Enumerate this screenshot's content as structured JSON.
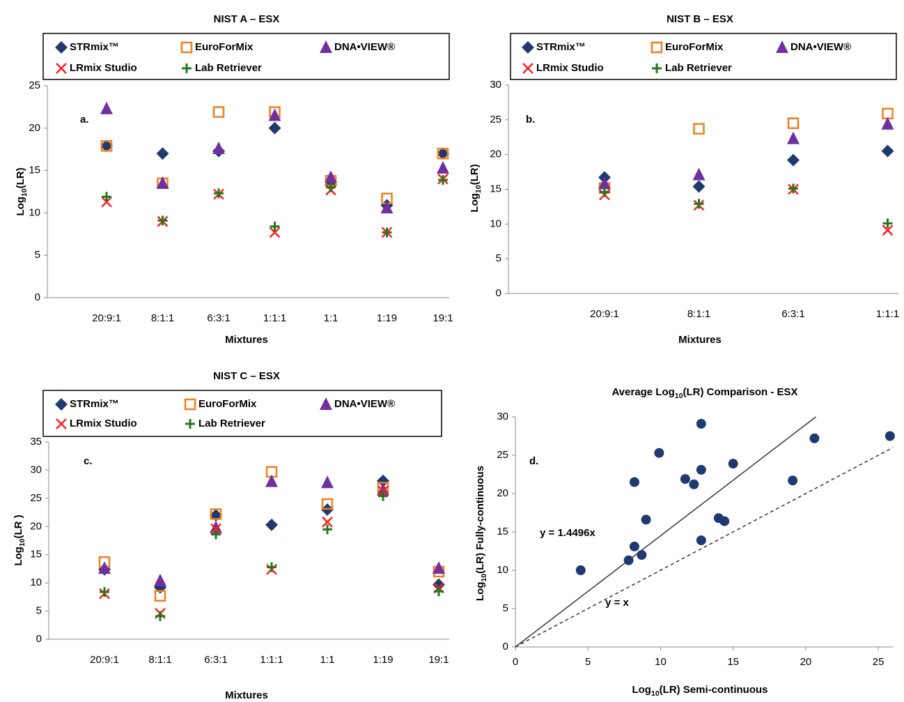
{
  "chart_data": [
    {
      "type": "scatter",
      "title": "NIST A – ESX",
      "annotation": "a.",
      "y_label": [
        "Log",
        "10",
        "(LR)"
      ],
      "x_label": "Mixtures",
      "categories": [
        "20:9:1",
        "8:1:1",
        "6:3:1",
        "1:1:1",
        "1:1",
        "1:19",
        "19:1"
      ],
      "ylim": [
        0,
        25
      ],
      "yticks": [
        0,
        5,
        10,
        15,
        20,
        25
      ],
      "series": [
        {
          "name": "STRmix™",
          "marker": "diamond",
          "color": "#1f3a6e",
          "values": [
            17.9,
            17.0,
            17.3,
            20.0,
            13.3,
            10.9,
            17.0
          ]
        },
        {
          "name": "EuroForMix",
          "marker": "square-open",
          "color": "#f07f1e",
          "values": [
            17.9,
            13.5,
            21.9,
            21.9,
            13.8,
            11.7,
            17.0
          ]
        },
        {
          "name": "DNA•VIEW®",
          "marker": "triangle",
          "color": "#7030a0",
          "values": [
            22.3,
            13.5,
            17.6,
            21.5,
            14.2,
            10.6,
            15.3
          ]
        },
        {
          "name": "LRmix Studio",
          "marker": "x",
          "color": "#ff2020",
          "values": [
            11.3,
            9.0,
            12.2,
            7.7,
            12.7,
            7.7,
            14.0
          ]
        },
        {
          "name": "Lab Retriever",
          "marker": "plus",
          "color": "#1e7a1e",
          "values": [
            11.9,
            9.1,
            12.3,
            8.4,
            13.0,
            7.7,
            13.9
          ]
        }
      ]
    },
    {
      "type": "scatter",
      "title": "NIST B – ESX",
      "annotation": "b.",
      "y_label": [
        "Log",
        "10",
        "(LR)"
      ],
      "x_label": "Mixtures",
      "categories": [
        "20:9:1",
        "8:1:1",
        "6:3:1",
        "1:1:1"
      ],
      "ylim": [
        0,
        30
      ],
      "yticks": [
        0,
        5,
        10,
        15,
        20,
        25,
        30
      ],
      "series": [
        {
          "name": "STRmix™",
          "marker": "diamond",
          "color": "#1f3a6e",
          "values": [
            16.7,
            15.4,
            19.2,
            20.5
          ]
        },
        {
          "name": "EuroForMix",
          "marker": "square-open",
          "color": "#f07f1e",
          "values": [
            15.2,
            23.7,
            24.5,
            25.9
          ]
        },
        {
          "name": "DNA•VIEW®",
          "marker": "triangle",
          "color": "#7030a0",
          "values": [
            15.8,
            17.1,
            22.3,
            24.4
          ]
        },
        {
          "name": "LRmix Studio",
          "marker": "x",
          "color": "#ff2020",
          "values": [
            14.2,
            12.7,
            15.0,
            9.1
          ]
        },
        {
          "name": "Lab Retriever",
          "marker": "plus",
          "color": "#1e7a1e",
          "values": [
            14.6,
            12.9,
            15.1,
            10.1
          ]
        }
      ]
    },
    {
      "type": "scatter",
      "title": "NIST C – ESX",
      "annotation": "c.",
      "y_label": [
        "Log",
        "10",
        "(LR )"
      ],
      "x_label": "Mixtures",
      "categories": [
        "20:9:1",
        "8:1:1",
        "6:3:1",
        "1:1:1",
        "1:1",
        "1:19",
        "19:1"
      ],
      "ylim": [
        0,
        35
      ],
      "yticks": [
        0,
        5,
        10,
        15,
        20,
        25,
        30,
        35
      ],
      "series": [
        {
          "name": "STRmix™",
          "marker": "diamond",
          "color": "#1f3a6e",
          "values": [
            12.4,
            9.2,
            22.0,
            20.3,
            23.0,
            28.1,
            9.7
          ]
        },
        {
          "name": "EuroForMix",
          "marker": "square-open",
          "color": "#f07f1e",
          "values": [
            13.7,
            7.7,
            22.2,
            29.7,
            24.0,
            26.9,
            12.0
          ]
        },
        {
          "name": "DNA•VIEW®",
          "marker": "triangle",
          "color": "#7030a0",
          "values": [
            12.6,
            10.4,
            19.8,
            28.0,
            27.8,
            26.5,
            12.6
          ]
        },
        {
          "name": "LRmix Studio",
          "marker": "x",
          "color": "#ff2020",
          "values": [
            8.1,
            4.6,
            19.6,
            12.4,
            20.8,
            26.3,
            9.1
          ]
        },
        {
          "name": "Lab Retriever",
          "marker": "plus",
          "color": "#1e7a1e",
          "values": [
            8.4,
            4.1,
            18.6,
            12.8,
            19.5,
            25.4,
            8.5
          ]
        }
      ]
    },
    {
      "type": "scatter",
      "title": [
        "Average Log",
        "10",
        "(LR) Comparison - ESX"
      ],
      "annotation": "d.",
      "y_label": [
        "Log",
        "10",
        "(LR) Fully-continuous"
      ],
      "x_label": [
        "Log",
        "10",
        "(LR) Semi-continuous"
      ],
      "xlim": [
        0,
        26
      ],
      "xticks": [
        0,
        5,
        10,
        15,
        20,
        25
      ],
      "ylim": [
        0,
        30
      ],
      "yticks": [
        0,
        5,
        10,
        15,
        20,
        25,
        30
      ],
      "color": "#1f3a6e",
      "x": [
        4.5,
        7.8,
        8.2,
        8.7,
        8.2,
        9.0,
        9.9,
        11.7,
        12.3,
        12.8,
        12.8,
        12.8,
        14.0,
        14.4,
        15.0,
        19.1,
        20.6,
        25.8
      ],
      "values": [
        10.0,
        11.3,
        13.1,
        12.0,
        21.5,
        16.6,
        25.3,
        21.9,
        21.2,
        29.1,
        23.1,
        13.9,
        16.8,
        16.4,
        23.9,
        21.7,
        27.2,
        27.5
      ],
      "lines": [
        {
          "label": "y = 1.4496x",
          "slope": 1.4496,
          "style": "solid"
        },
        {
          "label": "y = x",
          "slope": 1,
          "style": "dashed"
        }
      ]
    }
  ]
}
